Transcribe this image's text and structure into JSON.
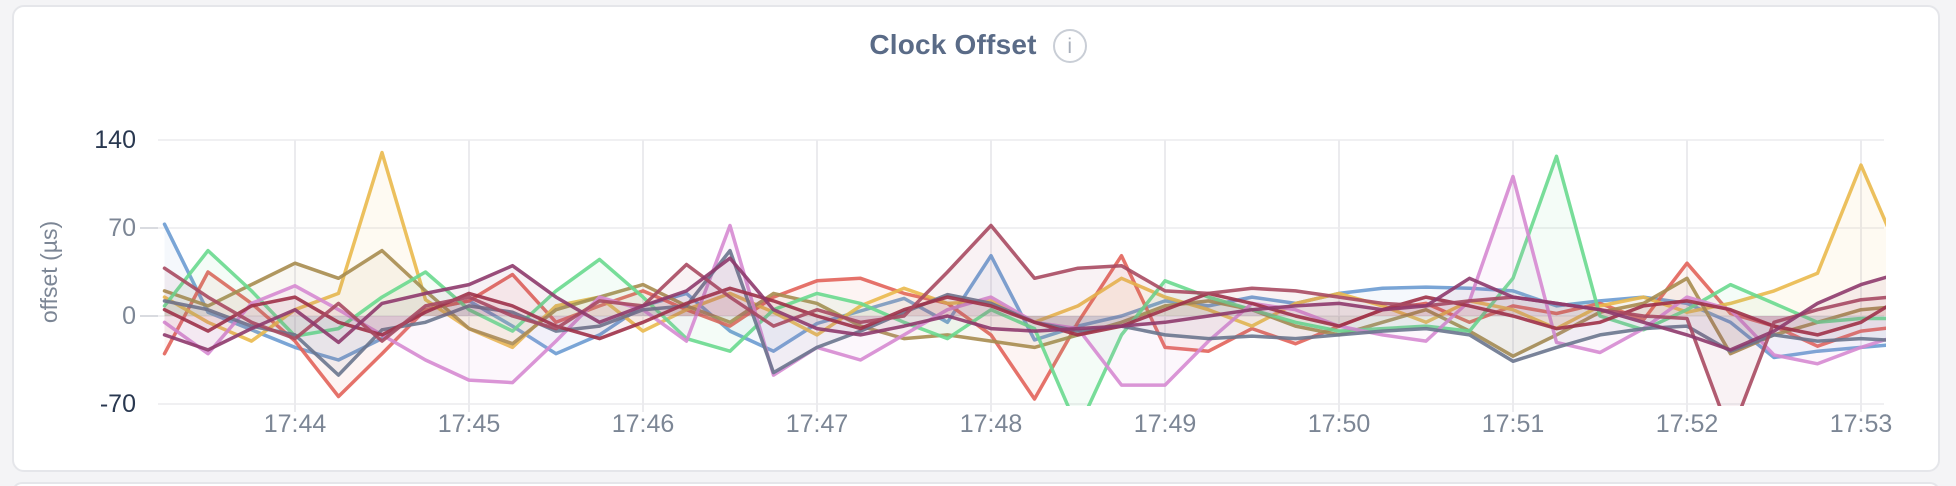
{
  "page": {
    "background": "#f4f4f6",
    "card_background": "#ffffff",
    "card_border": "#e5e6ea"
  },
  "panel": {
    "title": "Clock Offset",
    "info_icon_glyph": "i"
  },
  "colors": {
    "title_text": "#5a6b87",
    "tick_emphasized": "#293850",
    "tick_muted": "#7c8695",
    "axis_title": "#7c8695",
    "gridline": "#ebebee",
    "tick_dash": "#d9dbe0"
  },
  "chart_data": {
    "type": "line",
    "title": "Clock Offset",
    "xlabel": "",
    "ylabel": "offset (µs)",
    "ylim": [
      -70,
      140
    ],
    "grid": true,
    "legend": "none",
    "x_tick_labels": [
      "17:44",
      "17:45",
      "17:46",
      "17:47",
      "17:48",
      "17:49",
      "17:50",
      "17:51",
      "17:52",
      "17:53"
    ],
    "y_ticks": [
      {
        "label": "140",
        "value": 140,
        "emphasized": true
      },
      {
        "label": "70",
        "value": 70,
        "emphasized": false
      },
      {
        "label": "0",
        "value": 0,
        "emphasized": false
      },
      {
        "label": "-70",
        "value": -70,
        "emphasized": true
      }
    ],
    "x_start": "17:43:15",
    "x_step_seconds": 15,
    "line_width": 3.5,
    "fill_opacity": 0.07,
    "series": [
      {
        "name": "blue",
        "color": "#6C9BD2",
        "values": [
          73,
          3,
          -11,
          -25,
          -35,
          -18,
          5,
          12,
          -8,
          -30,
          -15,
          8,
          18,
          -12,
          -28,
          -6,
          4,
          14,
          -5,
          48,
          -19,
          -8,
          0,
          12,
          8,
          15,
          10,
          18,
          22,
          23,
          22,
          20,
          8,
          12,
          15,
          10,
          -5,
          -33,
          -28,
          -25,
          -22
        ]
      },
      {
        "name": "salmon",
        "color": "#E2635A",
        "values": [
          -30,
          35,
          10,
          -20,
          -64,
          -30,
          5,
          12,
          33,
          -5,
          8,
          20,
          5,
          -8,
          15,
          28,
          30,
          18,
          10,
          -15,
          -66,
          -5,
          48,
          -25,
          -28,
          -10,
          -22,
          -8,
          5,
          10,
          -5,
          8,
          2,
          10,
          -3,
          42,
          2,
          -8,
          -24,
          -12,
          -8
        ]
      },
      {
        "name": "gold",
        "color": "#EAB94D",
        "values": [
          15,
          -5,
          -20,
          5,
          18,
          130,
          13,
          -10,
          -25,
          8,
          15,
          -12,
          5,
          18,
          3,
          -15,
          8,
          22,
          10,
          12,
          -5,
          8,
          30,
          15,
          5,
          -8,
          10,
          18,
          8,
          -5,
          12,
          5,
          -10,
          8,
          15,
          3,
          10,
          20,
          34,
          120,
          40
        ]
      },
      {
        "name": "khaki",
        "color": "#A78C4F",
        "values": [
          20,
          8,
          25,
          42,
          30,
          52,
          20,
          -10,
          -22,
          5,
          15,
          25,
          8,
          -5,
          18,
          10,
          -8,
          -18,
          -15,
          -20,
          -25,
          -15,
          -5,
          8,
          12,
          5,
          -8,
          -15,
          -5,
          5,
          -12,
          -32,
          -15,
          3,
          10,
          30,
          -30,
          -15,
          -5,
          5,
          8
        ]
      },
      {
        "name": "green",
        "color": "#69D98E",
        "values": [
          8,
          52,
          20,
          -16,
          -10,
          15,
          35,
          5,
          -12,
          20,
          45,
          15,
          -18,
          -28,
          5,
          18,
          10,
          -5,
          -18,
          5,
          -10,
          -90,
          -15,
          28,
          15,
          5,
          -5,
          -12,
          -10,
          -8,
          -12,
          30,
          127,
          0,
          -11,
          5,
          25,
          10,
          -5,
          -2,
          -2
        ]
      },
      {
        "name": "orchid",
        "color": "#D689D1",
        "values": [
          -5,
          -30,
          10,
          24,
          5,
          -15,
          -35,
          -51,
          -53,
          -20,
          15,
          5,
          -20,
          72,
          -47,
          -25,
          -35,
          -15,
          5,
          15,
          -5,
          -10,
          -55,
          -55,
          -20,
          10,
          5,
          -8,
          -15,
          -20,
          12,
          111,
          -21,
          -29,
          -10,
          15,
          5,
          -31,
          -38,
          -25,
          -14
        ]
      },
      {
        "name": "slate",
        "color": "#6A768E",
        "values": [
          12,
          5,
          -8,
          -15,
          -47,
          -11,
          -5,
          8,
          3,
          -12,
          -8,
          5,
          8,
          52,
          -45,
          -25,
          -12,
          3,
          17,
          10,
          -5,
          -12,
          -8,
          -15,
          -18,
          -16,
          -18,
          -15,
          -12,
          -10,
          -15,
          -36,
          -25,
          -15,
          -10,
          -8,
          -28,
          -15,
          -20,
          -18,
          -20
        ]
      },
      {
        "name": "crimson",
        "color": "#9E3148",
        "values": [
          5,
          -12,
          8,
          15,
          -5,
          -15,
          3,
          18,
          8,
          -8,
          -18,
          -5,
          10,
          22,
          12,
          0,
          -10,
          5,
          15,
          8,
          -5,
          -15,
          -8,
          5,
          18,
          10,
          0,
          -8,
          5,
          15,
          8,
          0,
          -10,
          -5,
          8,
          12,
          5,
          -8,
          -15,
          -5,
          16
        ]
      },
      {
        "name": "maroon",
        "color": "#A84A62",
        "values": [
          38,
          15,
          -5,
          -18,
          10,
          -20,
          8,
          15,
          0,
          -10,
          12,
          8,
          41,
          15,
          -8,
          5,
          -5,
          0,
          35,
          72,
          30,
          38,
          40,
          20,
          18,
          22,
          20,
          15,
          10,
          8,
          12,
          15,
          10,
          5,
          0,
          -2,
          -95,
          -5,
          5,
          13,
          16
        ]
      },
      {
        "name": "purple",
        "color": "#8E3A6D",
        "values": [
          -15,
          -27,
          -10,
          5,
          -21,
          10,
          18,
          25,
          40,
          15,
          -5,
          8,
          20,
          46,
          5,
          -10,
          -15,
          -8,
          0,
          -10,
          -12,
          -10,
          -8,
          -5,
          0,
          5,
          8,
          10,
          5,
          8,
          30,
          15,
          10,
          5,
          -5,
          -15,
          -27,
          -12,
          10,
          25,
          35
        ]
      }
    ]
  }
}
